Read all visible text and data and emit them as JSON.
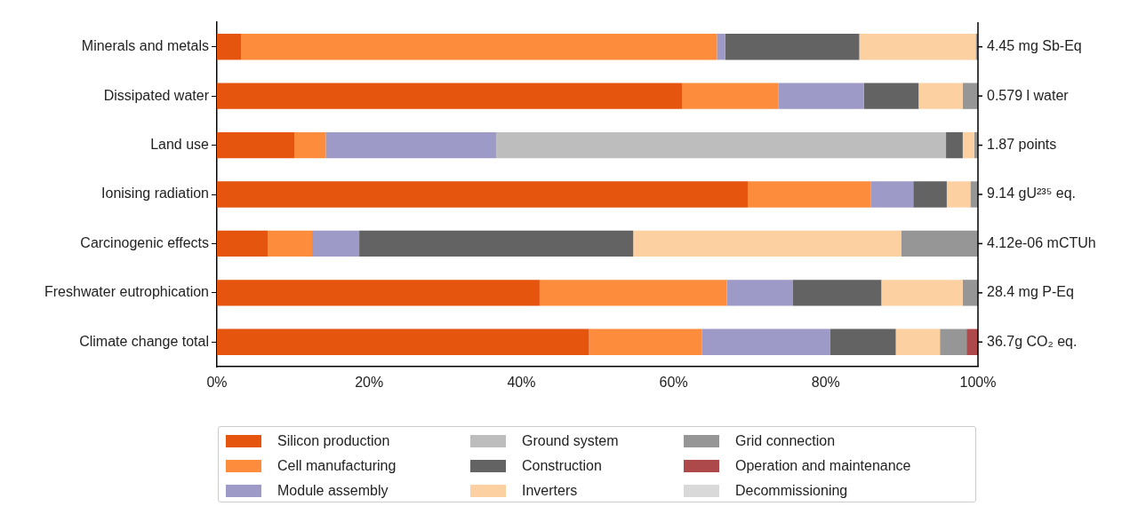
{
  "chart_data": {
    "type": "bar",
    "orientation": "horizontal",
    "stacked": true,
    "categories": [
      "Minerals and metals",
      "Dissipated water",
      "Land use",
      "Ionising radiation",
      "Carcinogenic effects",
      "Freshwater eutrophication",
      "Climate change total"
    ],
    "series": [
      {
        "name": "Silicon production",
        "color": "#e6550d",
        "values": [
          3.2,
          61.1,
          10.2,
          69.8,
          6.7,
          42.4,
          48.9
        ]
      },
      {
        "name": "Cell manufacturing",
        "color": "#fd8d3c",
        "values": [
          62.5,
          12.7,
          4.1,
          16.1,
          5.8,
          24.6,
          14.8
        ]
      },
      {
        "name": "Module assembly",
        "color": "#9e9ac8",
        "values": [
          1.1,
          11.2,
          22.4,
          5.6,
          6.2,
          8.7,
          16.9
        ]
      },
      {
        "name": "Ground system",
        "color": "#bdbdbd",
        "values": [
          0,
          0,
          59.1,
          0,
          0,
          0,
          0
        ]
      },
      {
        "name": "Construction",
        "color": "#636363",
        "values": [
          17.6,
          7.2,
          2.2,
          4.4,
          36.0,
          11.6,
          8.6
        ]
      },
      {
        "name": "Inverters",
        "color": "#fdd0a2",
        "values": [
          15.3,
          5.8,
          1.5,
          3.1,
          35.2,
          10.7,
          5.8
        ]
      },
      {
        "name": "Grid connection",
        "color": "#969696",
        "values": [
          0.3,
          2.0,
          0.5,
          1.0,
          10.1,
          2.0,
          3.5
        ]
      },
      {
        "name": "Operation and maintenance",
        "color": "#ad494a",
        "values": [
          0,
          0,
          0,
          0,
          0,
          0,
          1.5
        ]
      },
      {
        "name": "Decommissioning",
        "color": "#d9d9d9",
        "values": [
          0,
          0,
          0,
          0,
          0,
          0,
          0
        ]
      }
    ],
    "xlim": [
      0,
      100
    ],
    "xticks": [
      {
        "value": 0,
        "label": "0%"
      },
      {
        "value": 20,
        "label": "20%"
      },
      {
        "value": 40,
        "label": "40%"
      },
      {
        "value": 60,
        "label": "60%"
      },
      {
        "value": 80,
        "label": "80%"
      },
      {
        "value": 100,
        "label": "100%"
      }
    ],
    "annotations": [
      "4.45 mg Sb-Eq",
      "0.579 l water",
      "1.87 points",
      "9.14 gU²³⁵ eq.",
      "4.12e-06 mCTUh",
      "28.4 mg P-Eq",
      "36.7g CO₂ eq."
    ],
    "grid": false,
    "legend": "bottom"
  }
}
